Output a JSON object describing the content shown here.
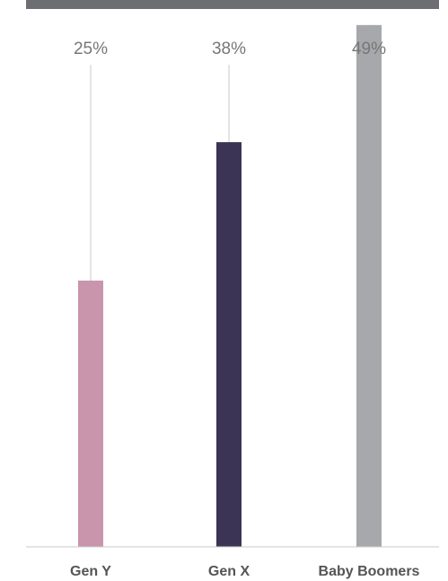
{
  "chart_data": {
    "type": "bar",
    "categories": [
      "Gen Y",
      "Gen X",
      "Baby Boomers"
    ],
    "values": [
      25,
      38,
      49
    ],
    "value_labels": [
      "25%",
      "38%",
      "49%"
    ],
    "colors": [
      "#c895ac",
      "#3b3454",
      "#a7a8ab"
    ],
    "ylim": [
      0,
      50
    ],
    "grid": false,
    "legend": "none",
    "title": "",
    "xlabel": "",
    "ylabel": ""
  }
}
